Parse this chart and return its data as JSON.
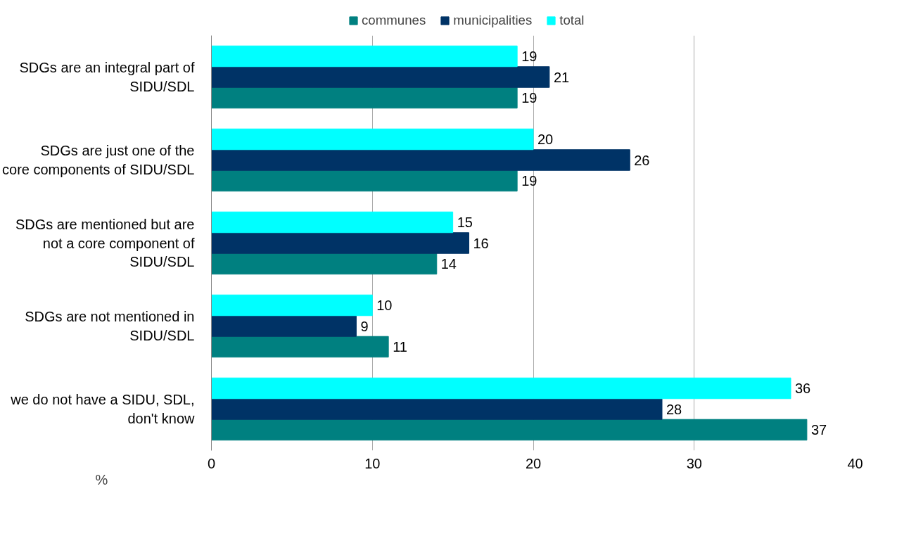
{
  "chart_data": {
    "type": "bar",
    "orientation": "horizontal",
    "xlabel": "%",
    "categories": [
      "SDGs are an integral part of SIDU/SDL",
      "SDGs are just one of the core components of SIDU/SDL",
      "SDGs are mentioned but are not a core component of SIDU/SDL",
      "SDGs are not mentioned in SIDU/SDL",
      "we do not have a SIDU, SDL, don't know"
    ],
    "series": [
      {
        "name": "communes",
        "color": "#008080",
        "values": [
          19,
          19,
          14,
          11,
          37
        ]
      },
      {
        "name": "municipalities",
        "color": "#003366",
        "values": [
          21,
          26,
          16,
          9,
          28
        ]
      },
      {
        "name": "total",
        "color": "#00ffff",
        "values": [
          19,
          20,
          15,
          10,
          36
        ]
      }
    ],
    "xlim": [
      0,
      40
    ],
    "xticks": [
      0,
      10,
      20,
      30,
      40
    ],
    "grid": "x",
    "legend": "top",
    "data_labels": true
  }
}
